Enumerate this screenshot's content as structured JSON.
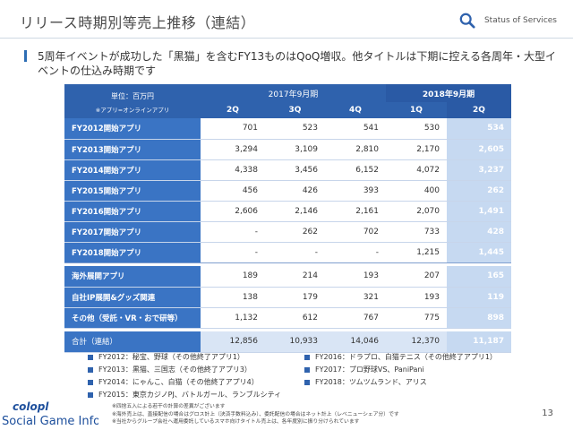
{
  "header": {
    "title": "リリース時期別等売上推移（連結）",
    "status_label": "Status of Services"
  },
  "lead": "5周年イベントが成功した「黒猫」を含むFY13ものはQoQ増収。他タイトルは下期に控える各周年・大型イベントの仕込み時期です",
  "table": {
    "unit": "単位：百万円",
    "unit_note": "※アプリ=オンラインアプリ",
    "period_2017": "2017年9月期",
    "period_2018": "2018年9月期",
    "quarters": [
      "2Q",
      "3Q",
      "4Q",
      "1Q",
      "2Q"
    ],
    "rows": [
      {
        "label": "FY2012開始アプリ",
        "values": [
          "701",
          "523",
          "541",
          "530",
          "534"
        ]
      },
      {
        "label": "FY2013開始アプリ",
        "values": [
          "3,294",
          "3,109",
          "2,810",
          "2,170",
          "2,605"
        ]
      },
      {
        "label": "FY2014開始アプリ",
        "values": [
          "4,338",
          "3,456",
          "6,152",
          "4,072",
          "3,237"
        ]
      },
      {
        "label": "FY2015開始アプリ",
        "values": [
          "456",
          "426",
          "393",
          "400",
          "262"
        ]
      },
      {
        "label": "FY2016開始アプリ",
        "values": [
          "2,606",
          "2,146",
          "2,161",
          "2,070",
          "1,491"
        ]
      },
      {
        "label": "FY2017開始アプリ",
        "values": [
          "-",
          "262",
          "702",
          "733",
          "428"
        ]
      },
      {
        "label": "FY2018開始アプリ",
        "values": [
          "-",
          "-",
          "-",
          "1,215",
          "1,445"
        ]
      },
      {
        "label": "海外展開アプリ",
        "values": [
          "189",
          "214",
          "193",
          "207",
          "165"
        ]
      },
      {
        "label": "自社IP展開&グッズ関連",
        "values": [
          "138",
          "179",
          "321",
          "193",
          "119"
        ]
      },
      {
        "label": "その他（受託・VR・おで研等）",
        "values": [
          "1,132",
          "612",
          "767",
          "775",
          "898"
        ]
      }
    ],
    "total": {
      "label": "合計（連結）",
      "values": [
        "12,856",
        "10,933",
        "14,046",
        "12,370",
        "11,187"
      ]
    }
  },
  "legend": [
    "FY2012：秘宝、野球（その他終了アプリ1）",
    "FY2016：ドラプロ、白猫テニス（その他終了アプリ1）",
    "FY2013：黒猫、三国志（その他終了アプリ3）",
    "FY2017：プロ野球VS、PaniPani",
    "FY2014：にゃんこ、白猫（その他終了アプリ4）",
    "FY2018：ツムツムランド、アリス",
    "FY2015：東京カジノPJ、バトルガール、ランブルシティ"
  ],
  "notes": [
    "※四捨五入による若干の計算の差異がございます",
    "※海外売上は、直接配信の場合はグロス計上（決済手数料込み）、委託配信の場合はネット計上（レベニューシェア分）です",
    "※当社からグループ会社へ運用委託しているスマホ向けタイトル売上は、各年度別に振り分けられています"
  ],
  "page_number": "13",
  "logo_text": "Social Game Info",
  "colors": {
    "accent": "#2f62ad",
    "highlight": "#c6d9f1"
  }
}
